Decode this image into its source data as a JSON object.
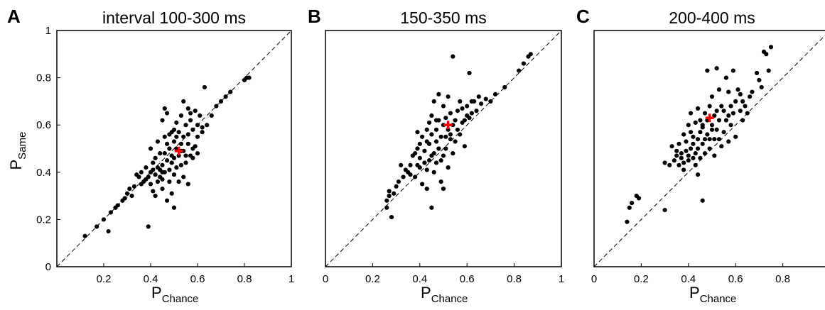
{
  "figure": {
    "ylabel": {
      "main": "P",
      "sub": "Same"
    },
    "xlabel": {
      "main": "P",
      "sub": "Chance"
    }
  },
  "colors": {
    "points": "#000000",
    "mean_marker": "#ff0000",
    "diagonal": "#000000"
  },
  "chart_data": [
    {
      "type": "scatter",
      "panel": "A",
      "title": "interval 100-300 ms",
      "xlabel": "P Chance",
      "ylabel": "P Same",
      "xlim": [
        0,
        1
      ],
      "ylim": [
        0,
        1
      ],
      "xticks": [
        0.2,
        0.4,
        0.6,
        0.8,
        1
      ],
      "xtick_labels": [
        "0.2",
        "0.4",
        "0.6",
        "0.8",
        "1"
      ],
      "yticks": [
        0,
        0.2,
        0.4,
        0.6,
        0.8,
        1
      ],
      "ytick_labels": [
        "0",
        "0.2",
        "0.4",
        "0.6",
        "0.8",
        "1"
      ],
      "mean": {
        "x": 0.52,
        "y": 0.49
      },
      "points": [
        [
          0.12,
          0.13
        ],
        [
          0.17,
          0.17
        ],
        [
          0.2,
          0.2
        ],
        [
          0.22,
          0.15
        ],
        [
          0.23,
          0.23
        ],
        [
          0.25,
          0.25
        ],
        [
          0.26,
          0.26
        ],
        [
          0.28,
          0.28
        ],
        [
          0.29,
          0.29
        ],
        [
          0.3,
          0.31
        ],
        [
          0.31,
          0.33
        ],
        [
          0.32,
          0.3
        ],
        [
          0.33,
          0.34
        ],
        [
          0.34,
          0.39
        ],
        [
          0.35,
          0.38
        ],
        [
          0.36,
          0.4
        ],
        [
          0.36,
          0.35
        ],
        [
          0.37,
          0.36
        ],
        [
          0.38,
          0.37
        ],
        [
          0.38,
          0.42
        ],
        [
          0.39,
          0.38
        ],
        [
          0.39,
          0.17
        ],
        [
          0.4,
          0.4
        ],
        [
          0.4,
          0.35
        ],
        [
          0.41,
          0.41
        ],
        [
          0.41,
          0.44
        ],
        [
          0.42,
          0.39
        ],
        [
          0.42,
          0.3
        ],
        [
          0.42,
          0.46
        ],
        [
          0.43,
          0.36
        ],
        [
          0.43,
          0.42
        ],
        [
          0.43,
          0.53
        ],
        [
          0.44,
          0.41
        ],
        [
          0.44,
          0.38
        ],
        [
          0.44,
          0.48
        ],
        [
          0.45,
          0.43
        ],
        [
          0.45,
          0.62
        ],
        [
          0.45,
          0.33
        ],
        [
          0.45,
          0.4
        ],
        [
          0.46,
          0.67
        ],
        [
          0.46,
          0.55
        ],
        [
          0.46,
          0.48
        ],
        [
          0.46,
          0.4
        ],
        [
          0.47,
          0.45
        ],
        [
          0.47,
          0.65
        ],
        [
          0.47,
          0.28
        ],
        [
          0.47,
          0.52
        ],
        [
          0.48,
          0.41
        ],
        [
          0.48,
          0.56
        ],
        [
          0.48,
          0.36
        ],
        [
          0.48,
          0.5
        ],
        [
          0.49,
          0.57
        ],
        [
          0.49,
          0.44
        ],
        [
          0.49,
          0.31
        ],
        [
          0.49,
          0.47
        ],
        [
          0.5,
          0.53
        ],
        [
          0.5,
          0.58
        ],
        [
          0.5,
          0.39
        ],
        [
          0.5,
          0.46
        ],
        [
          0.5,
          0.25
        ],
        [
          0.51,
          0.55
        ],
        [
          0.51,
          0.5
        ],
        [
          0.51,
          0.42
        ],
        [
          0.51,
          0.61
        ],
        [
          0.52,
          0.47
        ],
        [
          0.52,
          0.57
        ],
        [
          0.52,
          0.36
        ],
        [
          0.53,
          0.52
        ],
        [
          0.53,
          0.64
        ],
        [
          0.53,
          0.43
        ],
        [
          0.53,
          0.49
        ],
        [
          0.54,
          0.49
        ],
        [
          0.54,
          0.7
        ],
        [
          0.54,
          0.38
        ],
        [
          0.54,
          0.55
        ],
        [
          0.55,
          0.47
        ],
        [
          0.55,
          0.6
        ],
        [
          0.55,
          0.44
        ],
        [
          0.56,
          0.52
        ],
        [
          0.56,
          0.67
        ],
        [
          0.56,
          0.56
        ],
        [
          0.57,
          0.47
        ],
        [
          0.57,
          0.62
        ],
        [
          0.57,
          0.65
        ],
        [
          0.58,
          0.5
        ],
        [
          0.58,
          0.58
        ],
        [
          0.58,
          0.46
        ],
        [
          0.59,
          0.51
        ],
        [
          0.59,
          0.66
        ],
        [
          0.6,
          0.6
        ],
        [
          0.6,
          0.55
        ],
        [
          0.61,
          0.64
        ],
        [
          0.62,
          0.59
        ],
        [
          0.62,
          0.57
        ],
        [
          0.63,
          0.76
        ],
        [
          0.64,
          0.6
        ],
        [
          0.66,
          0.64
        ],
        [
          0.68,
          0.68
        ],
        [
          0.7,
          0.7
        ],
        [
          0.72,
          0.72
        ],
        [
          0.74,
          0.74
        ],
        [
          0.8,
          0.79
        ],
        [
          0.81,
          0.8
        ],
        [
          0.82,
          0.8
        ],
        [
          0.6,
          0.48
        ],
        [
          0.56,
          0.35
        ],
        [
          0.45,
          0.37
        ],
        [
          0.4,
          0.5
        ],
        [
          0.41,
          0.32
        ]
      ]
    },
    {
      "type": "scatter",
      "panel": "B",
      "title": "150-350 ms",
      "xlabel": "P Chance",
      "ylabel": "",
      "xlim": [
        0,
        1
      ],
      "ylim": [
        0,
        1
      ],
      "xticks": [
        0,
        0.2,
        0.4,
        0.6,
        0.8,
        1
      ],
      "xtick_labels": [
        "0",
        "0.2",
        "0.4",
        "0.6",
        "0.8",
        "1"
      ],
      "yticks": [],
      "ytick_labels": [],
      "mean": {
        "x": 0.52,
        "y": 0.6
      },
      "points": [
        [
          0.26,
          0.25
        ],
        [
          0.26,
          0.28
        ],
        [
          0.27,
          0.3
        ],
        [
          0.27,
          0.32
        ],
        [
          0.28,
          0.21
        ],
        [
          0.29,
          0.31
        ],
        [
          0.3,
          0.34
        ],
        [
          0.31,
          0.36
        ],
        [
          0.33,
          0.38
        ],
        [
          0.34,
          0.41
        ],
        [
          0.35,
          0.4
        ],
        [
          0.36,
          0.43
        ],
        [
          0.37,
          0.47
        ],
        [
          0.38,
          0.48
        ],
        [
          0.38,
          0.38
        ],
        [
          0.39,
          0.5
        ],
        [
          0.39,
          0.43
        ],
        [
          0.4,
          0.52
        ],
        [
          0.4,
          0.42
        ],
        [
          0.41,
          0.55
        ],
        [
          0.41,
          0.35
        ],
        [
          0.42,
          0.49
        ],
        [
          0.42,
          0.44
        ],
        [
          0.43,
          0.58
        ],
        [
          0.43,
          0.41
        ],
        [
          0.43,
          0.33
        ],
        [
          0.44,
          0.52
        ],
        [
          0.44,
          0.61
        ],
        [
          0.44,
          0.45
        ],
        [
          0.45,
          0.64
        ],
        [
          0.45,
          0.25
        ],
        [
          0.45,
          0.56
        ],
        [
          0.46,
          0.48
        ],
        [
          0.46,
          0.7
        ],
        [
          0.46,
          0.4
        ],
        [
          0.47,
          0.53
        ],
        [
          0.47,
          0.58
        ],
        [
          0.47,
          0.44
        ],
        [
          0.48,
          0.62
        ],
        [
          0.48,
          0.73
        ],
        [
          0.48,
          0.5
        ],
        [
          0.49,
          0.55
        ],
        [
          0.49,
          0.45
        ],
        [
          0.49,
          0.36
        ],
        [
          0.5,
          0.6
        ],
        [
          0.5,
          0.68
        ],
        [
          0.5,
          0.47
        ],
        [
          0.51,
          0.55
        ],
        [
          0.51,
          0.63
        ],
        [
          0.51,
          0.5
        ],
        [
          0.52,
          0.58
        ],
        [
          0.52,
          0.72
        ],
        [
          0.52,
          0.42
        ],
        [
          0.53,
          0.54
        ],
        [
          0.53,
          0.65
        ],
        [
          0.53,
          0.56
        ],
        [
          0.54,
          0.6
        ],
        [
          0.54,
          0.89
        ],
        [
          0.54,
          0.48
        ],
        [
          0.55,
          0.62
        ],
        [
          0.55,
          0.53
        ],
        [
          0.56,
          0.66
        ],
        [
          0.56,
          0.58
        ],
        [
          0.57,
          0.56
        ],
        [
          0.57,
          0.7
        ],
        [
          0.58,
          0.61
        ],
        [
          0.58,
          0.67
        ],
        [
          0.59,
          0.62
        ],
        [
          0.59,
          0.51
        ],
        [
          0.6,
          0.64
        ],
        [
          0.6,
          0.68
        ],
        [
          0.61,
          0.63
        ],
        [
          0.61,
          0.82
        ],
        [
          0.62,
          0.7
        ],
        [
          0.62,
          0.65
        ],
        [
          0.63,
          0.7
        ],
        [
          0.64,
          0.66
        ],
        [
          0.65,
          0.72
        ],
        [
          0.66,
          0.69
        ],
        [
          0.68,
          0.71
        ],
        [
          0.7,
          0.7
        ],
        [
          0.72,
          0.73
        ],
        [
          0.76,
          0.76
        ],
        [
          0.82,
          0.83
        ],
        [
          0.84,
          0.86
        ],
        [
          0.86,
          0.89
        ],
        [
          0.87,
          0.9
        ],
        [
          0.39,
          0.57
        ],
        [
          0.43,
          0.53
        ],
        [
          0.47,
          0.62
        ],
        [
          0.4,
          0.46
        ],
        [
          0.36,
          0.39
        ],
        [
          0.5,
          0.33
        ],
        [
          0.45,
          0.47
        ],
        [
          0.32,
          0.43
        ]
      ]
    },
    {
      "type": "scatter",
      "panel": "C",
      "title": "200-400 ms",
      "xlabel": "P Chance",
      "ylabel": "",
      "xlim": [
        0,
        1
      ],
      "ylim": [
        0,
        1
      ],
      "xticks": [
        0,
        0.2,
        0.4,
        0.6,
        0.8
      ],
      "xtick_labels": [
        "0",
        "0.2",
        "0.4",
        "0.6",
        "0.8"
      ],
      "yticks": [],
      "ytick_labels": [],
      "mean": {
        "x": 0.49,
        "y": 0.63
      },
      "points": [
        [
          0.14,
          0.19
        ],
        [
          0.15,
          0.25
        ],
        [
          0.16,
          0.27
        ],
        [
          0.18,
          0.3
        ],
        [
          0.19,
          0.29
        ],
        [
          0.3,
          0.24
        ],
        [
          0.3,
          0.44
        ],
        [
          0.32,
          0.43
        ],
        [
          0.33,
          0.51
        ],
        [
          0.34,
          0.45
        ],
        [
          0.35,
          0.47
        ],
        [
          0.36,
          0.43
        ],
        [
          0.36,
          0.52
        ],
        [
          0.37,
          0.48
        ],
        [
          0.37,
          0.46
        ],
        [
          0.38,
          0.56
        ],
        [
          0.38,
          0.44
        ],
        [
          0.39,
          0.49
        ],
        [
          0.39,
          0.53
        ],
        [
          0.4,
          0.6
        ],
        [
          0.4,
          0.47
        ],
        [
          0.4,
          0.45
        ],
        [
          0.41,
          0.5
        ],
        [
          0.41,
          0.57
        ],
        [
          0.41,
          0.65
        ],
        [
          0.42,
          0.52
        ],
        [
          0.42,
          0.46
        ],
        [
          0.42,
          0.55
        ],
        [
          0.43,
          0.48
        ],
        [
          0.43,
          0.61
        ],
        [
          0.43,
          0.43
        ],
        [
          0.44,
          0.54
        ],
        [
          0.44,
          0.5
        ],
        [
          0.44,
          0.67
        ],
        [
          0.45,
          0.57
        ],
        [
          0.45,
          0.46
        ],
        [
          0.45,
          0.62
        ],
        [
          0.46,
          0.52
        ],
        [
          0.46,
          0.28
        ],
        [
          0.46,
          0.59
        ],
        [
          0.47,
          0.54
        ],
        [
          0.47,
          0.65
        ],
        [
          0.47,
          0.48
        ],
        [
          0.48,
          0.56
        ],
        [
          0.48,
          0.83
        ],
        [
          0.48,
          0.62
        ],
        [
          0.49,
          0.54
        ],
        [
          0.49,
          0.68
        ],
        [
          0.49,
          0.5
        ],
        [
          0.5,
          0.58
        ],
        [
          0.5,
          0.72
        ],
        [
          0.5,
          0.6
        ],
        [
          0.51,
          0.54
        ],
        [
          0.51,
          0.64
        ],
        [
          0.51,
          0.47
        ],
        [
          0.52,
          0.66
        ],
        [
          0.52,
          0.84
        ],
        [
          0.52,
          0.58
        ],
        [
          0.53,
          0.54
        ],
        [
          0.53,
          0.62
        ],
        [
          0.54,
          0.51
        ],
        [
          0.54,
          0.68
        ],
        [
          0.55,
          0.66
        ],
        [
          0.55,
          0.57
        ],
        [
          0.56,
          0.8
        ],
        [
          0.56,
          0.62
        ],
        [
          0.57,
          0.53
        ],
        [
          0.57,
          0.74
        ],
        [
          0.58,
          0.68
        ],
        [
          0.58,
          0.6
        ],
        [
          0.59,
          0.83
        ],
        [
          0.59,
          0.65
        ],
        [
          0.6,
          0.7
        ],
        [
          0.6,
          0.55
        ],
        [
          0.61,
          0.75
        ],
        [
          0.62,
          0.66
        ],
        [
          0.62,
          0.73
        ],
        [
          0.63,
          0.7
        ],
        [
          0.64,
          0.68
        ],
        [
          0.65,
          0.65
        ],
        [
          0.66,
          0.72
        ],
        [
          0.67,
          0.74
        ],
        [
          0.69,
          0.82
        ],
        [
          0.7,
          0.79
        ],
        [
          0.71,
          0.76
        ],
        [
          0.72,
          0.91
        ],
        [
          0.73,
          0.9
        ],
        [
          0.74,
          0.83
        ],
        [
          0.75,
          0.93
        ],
        [
          0.44,
          0.39
        ],
        [
          0.38,
          0.41
        ],
        [
          0.35,
          0.49
        ],
        [
          0.46,
          0.6
        ],
        [
          0.53,
          0.75
        ],
        [
          0.57,
          0.64
        ],
        [
          0.63,
          0.62
        ]
      ]
    }
  ]
}
